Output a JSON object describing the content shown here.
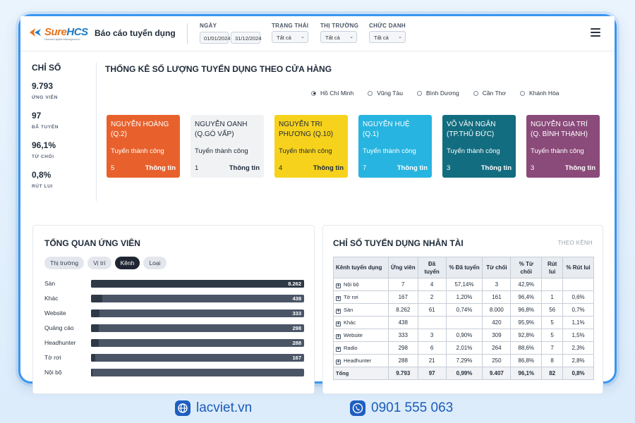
{
  "header": {
    "logo_sure": "Sure",
    "logo_hcs": "HCS",
    "logo_sub": "HumanCapital Management",
    "title": "Báo cáo tuyển dụng",
    "filters": {
      "date_label": "NGÀY",
      "date_from": "01/01/2024",
      "date_to": "31/12/2024",
      "status_label": "TRẠNG THÁI",
      "status_value": "Tất cả",
      "market_label": "THỊ TRƯỜNG",
      "market_value": "Tất cả",
      "title_label": "CHỨC DANH",
      "title_value": "Tất cả"
    }
  },
  "kpi": {
    "heading": "CHỈ SỐ",
    "items": [
      {
        "value": "9.793",
        "label": "ỨNG VIÊN"
      },
      {
        "value": "97",
        "label": "ĐÃ TUYỂN"
      },
      {
        "value": "96,1%",
        "label": "TỪ CHỐI"
      },
      {
        "value": "0,8%",
        "label": "RÚT LUI"
      }
    ]
  },
  "stores": {
    "title": "THỐNG KÊ SỐ LƯỢNG TUYỂN DỤNG THEO CỬA HÀNG",
    "regions": [
      {
        "label": "Hồ Chí Minh",
        "selected": true
      },
      {
        "label": "Vũng Tàu",
        "selected": false
      },
      {
        "label": "Bình Dương",
        "selected": false
      },
      {
        "label": "Cần Thơ",
        "selected": false
      },
      {
        "label": "Khánh Hòa",
        "selected": false
      }
    ],
    "cards": [
      {
        "name": "NGUYỄN HOÀNG (Q.2)",
        "status": "Tuyển thành công",
        "count": "5",
        "info": "Thông tin",
        "bg": "#e8612c",
        "fg": "#ffffff"
      },
      {
        "name": "NGUYỄN OANH (Q.GÒ VẤP)",
        "status": "Tuyển thành công",
        "count": "1",
        "info": "Thông tin",
        "bg": "#f1f2f4",
        "fg": "#1e2a38"
      },
      {
        "name": "NGUYỄN TRI PHƯƠNG (Q.10)",
        "status": "Tuyển thành công",
        "count": "4",
        "info": "Thông tin",
        "bg": "#f7d21c",
        "fg": "#1e2a38"
      },
      {
        "name": "NGUYỄN HUỆ (Q.1)",
        "status": "Tuyển thành công",
        "count": "7",
        "info": "Thông tin",
        "bg": "#27b4e0",
        "fg": "#ffffff"
      },
      {
        "name": "VÕ VĂN NGÂN (TP.THỦ ĐỨC)",
        "status": "Tuyển thành công",
        "count": "3",
        "info": "Thông tin",
        "bg": "#136d80",
        "fg": "#ffffff"
      },
      {
        "name": "NGUYỄN GIA TRÍ (Q. BÌNH THẠNH)",
        "status": "Tuyển thành công",
        "count": "3",
        "info": "Thông tin",
        "bg": "#8a4a7a",
        "fg": "#ffffff"
      }
    ]
  },
  "overview": {
    "title": "TỔNG QUAN ỨNG VIÊN",
    "chips": [
      {
        "label": "Thị trường",
        "active": false
      },
      {
        "label": "Vị trí",
        "active": false
      },
      {
        "label": "Kênh",
        "active": true
      },
      {
        "label": "Loại",
        "active": false
      }
    ],
    "chart_data": {
      "type": "bar",
      "categories": [
        "Sàn",
        "Khác",
        "Website",
        "Quảng cáo",
        "Headhunter",
        "Tờ rơi",
        "Nội bộ"
      ],
      "values": [
        8262,
        438,
        333,
        298,
        288,
        167,
        7
      ],
      "value_labels": [
        "8.262",
        "438",
        "333",
        "298",
        "288",
        "167",
        ""
      ]
    }
  },
  "talent": {
    "title": "CHỈ SỐ TUYỂN DỤNG NHÂN TÀI",
    "subtitle": "THEO KÊNH",
    "columns": [
      "Kênh tuyển dụng",
      "Ứng viên",
      "Đã tuyển",
      "% Đã tuyển",
      "Từ chối",
      "% Từ chối",
      "Rút lui",
      "% Rút lui"
    ],
    "rows": [
      [
        "Nội bộ",
        "7",
        "4",
        "57,14%",
        "3",
        "42,9%",
        "",
        ""
      ],
      [
        "Tờ rơi",
        "167",
        "2",
        "1,20%",
        "161",
        "96,4%",
        "1",
        "0,6%"
      ],
      [
        "Sàn",
        "8.262",
        "61",
        "0,74%",
        "8.000",
        "96,8%",
        "56",
        "0,7%"
      ],
      [
        "Khác",
        "438",
        "",
        "",
        "420",
        "95,9%",
        "5",
        "1,1%"
      ],
      [
        "Website",
        "333",
        "3",
        "0,90%",
        "309",
        "92,8%",
        "5",
        "1,5%"
      ],
      [
        "Radio",
        "298",
        "6",
        "2,01%",
        "264",
        "88,6%",
        "7",
        "2,3%"
      ],
      [
        "Headhunter",
        "288",
        "21",
        "7,29%",
        "250",
        "86,8%",
        "8",
        "2,8%"
      ]
    ],
    "total": [
      "Tổng",
      "9.793",
      "97",
      "0,99%",
      "9.407",
      "96,1%",
      "82",
      "0,8%"
    ]
  },
  "footer": {
    "site": "lacviet.vn",
    "phone": "0901 555 063"
  },
  "colors": {
    "frame_border": "#3a96f0",
    "footer_text": "#1a5bb8"
  }
}
